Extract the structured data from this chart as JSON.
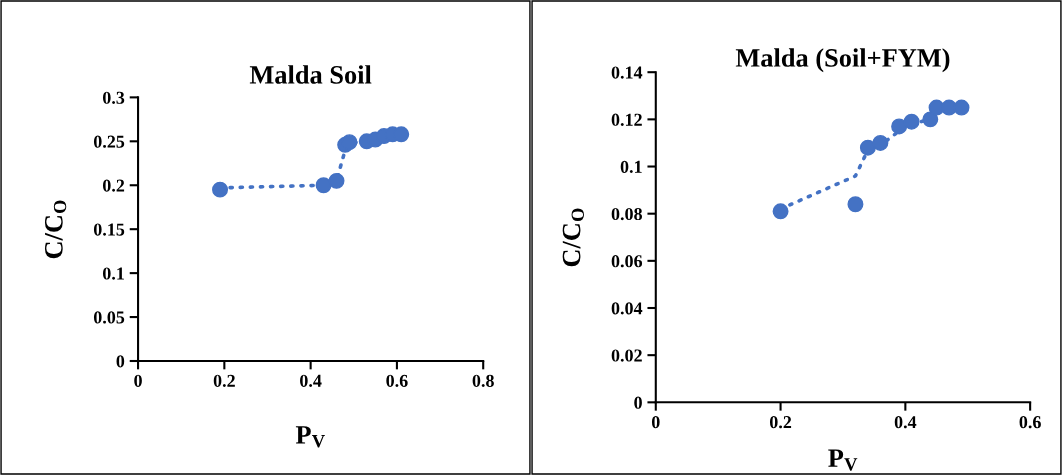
{
  "chart_data": [
    {
      "type": "scatter",
      "title": "Malda Soil",
      "xlabel": "P$_{V}$",
      "ylabel": "C/C$_{O}$",
      "xlim": [
        0,
        0.8
      ],
      "xticks": [
        0,
        0.2,
        0.4,
        0.6,
        0.8
      ],
      "ylim": [
        0,
        0.3
      ],
      "yticks": [
        0,
        0.05,
        0.1,
        0.15,
        0.2,
        0.25,
        0.3
      ],
      "grid": false,
      "legend": false,
      "series": [
        {
          "marker": "circle",
          "color": "#4472c4",
          "x": [
            0.19,
            0.43,
            0.46,
            0.48,
            0.49,
            0.53,
            0.55,
            0.57,
            0.59,
            0.61
          ],
          "values": [
            0.195,
            0.2,
            0.205,
            0.246,
            0.249,
            0.25,
            0.252,
            0.256,
            0.258,
            0.258
          ]
        },
        {
          "type": "line",
          "marker": "none",
          "line_style": "dotted",
          "color": "#4472c4",
          "x": [
            0.19,
            0.43,
            0.46,
            0.48,
            0.49,
            0.53,
            0.55,
            0.57,
            0.59,
            0.61
          ],
          "values": [
            0.197,
            0.2,
            0.205,
            0.24,
            0.248,
            0.25,
            0.252,
            0.256,
            0.258,
            0.258
          ]
        }
      ]
    },
    {
      "type": "scatter",
      "title": "Malda (Soil+FYM)",
      "xlabel": "P$_{V}$",
      "ylabel": "C/C$_{O}$",
      "xlim": [
        0,
        0.6
      ],
      "xticks": [
        0,
        0.2,
        0.4,
        0.6
      ],
      "ylim": [
        0,
        0.14
      ],
      "yticks": [
        0,
        0.02,
        0.04,
        0.06,
        0.08,
        0.1,
        0.12,
        0.14
      ],
      "grid": false,
      "legend": false,
      "series": [
        {
          "marker": "circle",
          "color": "#4472c4",
          "x": [
            0.2,
            0.32,
            0.34,
            0.36,
            0.39,
            0.41,
            0.44,
            0.45,
            0.47,
            0.49
          ],
          "values": [
            0.081,
            0.084,
            0.108,
            0.11,
            0.117,
            0.119,
            0.12,
            0.125,
            0.125,
            0.125
          ]
        },
        {
          "type": "line",
          "marker": "none",
          "line_style": "dotted",
          "color": "#4472c4",
          "x": [
            0.2,
            0.32,
            0.34,
            0.36,
            0.39,
            0.41,
            0.44,
            0.45,
            0.47,
            0.49
          ],
          "values": [
            0.082,
            0.096,
            0.107,
            0.109,
            0.115,
            0.118,
            0.12,
            0.123,
            0.125,
            0.125
          ]
        }
      ]
    }
  ]
}
